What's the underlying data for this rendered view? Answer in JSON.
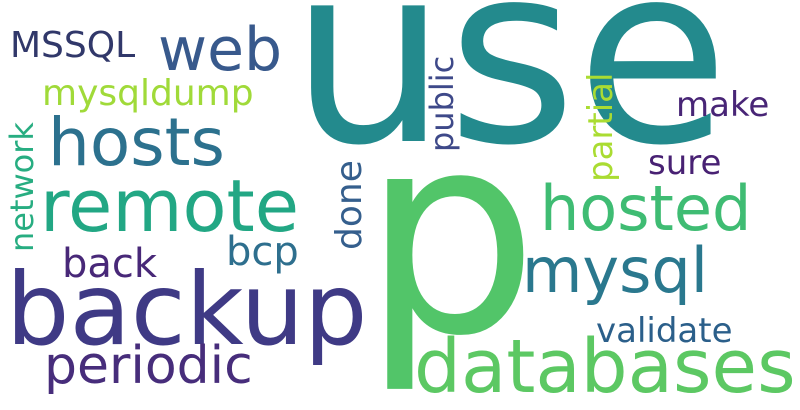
{
  "words": {
    "use": {
      "text": "use",
      "color": "#238a8d"
    },
    "p": {
      "text": "p",
      "color": "#52c569"
    },
    "backup": {
      "text": "backup",
      "color": "#3f3a85"
    },
    "databases": {
      "text": "databases",
      "color": "#5cc863"
    },
    "remote": {
      "text": "remote",
      "color": "#22a784"
    },
    "hosts": {
      "text": "hosts",
      "color": "#2c718e"
    },
    "hosted": {
      "text": "hosted",
      "color": "#3fbc73"
    },
    "web": {
      "text": "web",
      "color": "#38598c"
    },
    "mysql": {
      "text": "mysql",
      "color": "#2a788e"
    },
    "periodic": {
      "text": "periodic",
      "color": "#472d7b"
    },
    "mysqldump": {
      "text": "mysqldump",
      "color": "#a0da39"
    },
    "MSSQL": {
      "text": "MSSQL",
      "color": "#31386a"
    },
    "validate": {
      "text": "validate",
      "color": "#2b5f8a"
    },
    "make": {
      "text": "make",
      "color": "#482576"
    },
    "sure": {
      "text": "sure",
      "color": "#482173"
    },
    "back": {
      "text": "back",
      "color": "#482878"
    },
    "bcp": {
      "text": "bcp",
      "color": "#2e6f8e"
    },
    "network": {
      "text": "network",
      "color": "#27ad81"
    },
    "done": {
      "text": "done",
      "color": "#355f8d"
    },
    "public": {
      "text": "public",
      "color": "#3e4989"
    },
    "partial": {
      "text": "partial",
      "color": "#aadc32"
    }
  }
}
